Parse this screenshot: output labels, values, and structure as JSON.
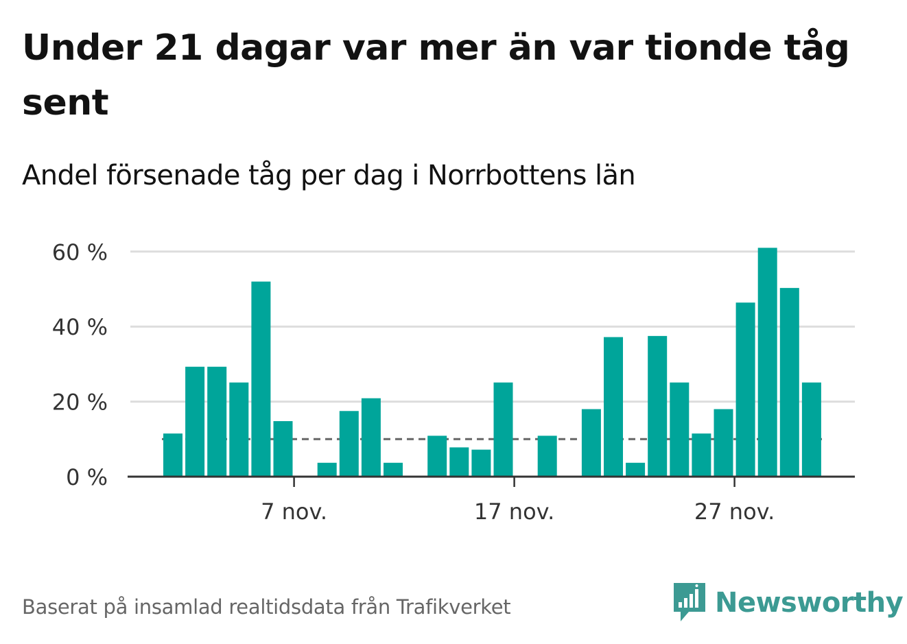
{
  "title": "Under 21 dagar var mer än var tionde tåg sent",
  "subtitle": "Andel försenade tåg per dag i Norrbottens län",
  "source": "Baserat på insamlad realtidsdata från Trafikverket",
  "brand": "Newsworthy",
  "colors": {
    "bar": "#00a59a",
    "reference_line": "#666666",
    "grid": "#dddddd",
    "axis": "#333333",
    "brand": "#3c9a93"
  },
  "chart_data": {
    "type": "bar",
    "x_unit": "day of November",
    "x": [
      1,
      2,
      3,
      4,
      5,
      6,
      7,
      8,
      9,
      10,
      11,
      12,
      13,
      14,
      15,
      16,
      17,
      18,
      19,
      20,
      21,
      22,
      23,
      24,
      25,
      26,
      27,
      28,
      29,
      30
    ],
    "values": [
      11.5,
      29.3,
      29.3,
      25.1,
      52.0,
      14.8,
      0,
      3.7,
      17.5,
      20.9,
      3.7,
      0,
      10.9,
      7.8,
      7.2,
      25.1,
      0,
      10.9,
      0,
      18.0,
      37.2,
      3.7,
      37.5,
      25.1,
      11.5,
      18.0,
      46.4,
      61.0,
      50.3,
      25.1
    ],
    "reference_line": {
      "value": 10,
      "style": "dashed"
    },
    "ylim": [
      0,
      65
    ],
    "y_ticks": [
      {
        "value": 0,
        "label": "0 %"
      },
      {
        "value": 20,
        "label": "20 %"
      },
      {
        "value": 40,
        "label": "40 %"
      },
      {
        "value": 60,
        "label": "60 %"
      }
    ],
    "x_ticks": [
      {
        "day": 7,
        "label": "7 nov."
      },
      {
        "day": 17,
        "label": "17 nov."
      },
      {
        "day": 27,
        "label": "27 nov."
      }
    ],
    "grid": true
  }
}
